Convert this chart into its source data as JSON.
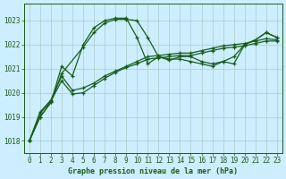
{
  "bg_color": "#cceeff",
  "grid_color": "#aacccc",
  "line_color": "#1a5c1a",
  "marker": "+",
  "title": "Graphe pression niveau de la mer (hPa)",
  "ylim": [
    1017.5,
    1023.7
  ],
  "xlim": [
    -0.5,
    23.5
  ],
  "yticks": [
    1018,
    1019,
    1020,
    1021,
    1022,
    1023
  ],
  "xticks": [
    0,
    1,
    2,
    3,
    4,
    5,
    6,
    7,
    8,
    9,
    10,
    11,
    12,
    13,
    14,
    15,
    16,
    17,
    18,
    19,
    20,
    21,
    22,
    23
  ],
  "series": [
    {
      "x": [
        0,
        1,
        2,
        3,
        4,
        5,
        6,
        7,
        8,
        9,
        10,
        11,
        12,
        13,
        14,
        15,
        16,
        17,
        18,
        19,
        20,
        21,
        22,
        23
      ],
      "y": [
        1018.0,
        1019.0,
        1019.6,
        1021.1,
        1020.7,
        1022.0,
        1022.7,
        1023.0,
        1023.1,
        1023.1,
        1022.3,
        1021.2,
        1021.5,
        1021.4,
        1021.4,
        1021.3,
        1021.2,
        1021.1,
        1021.3,
        1021.2,
        1022.0,
        1022.2,
        1022.5,
        1022.3
      ]
    },
    {
      "x": [
        0,
        1,
        2,
        3,
        5,
        6,
        7,
        8,
        9,
        10,
        11,
        12,
        13,
        14,
        15,
        16,
        17,
        18,
        19,
        20,
        21,
        22,
        23
      ],
      "y": [
        1018.0,
        1019.0,
        1019.6,
        1020.8,
        1021.9,
        1022.5,
        1022.9,
        1023.05,
        1023.05,
        1023.0,
        1022.3,
        1021.5,
        1021.35,
        1021.5,
        1021.5,
        1021.3,
        1021.2,
        1021.3,
        1021.5,
        1022.0,
        1022.2,
        1022.5,
        1022.3
      ]
    },
    {
      "x": [
        0,
        1,
        2,
        3,
        4,
        5,
        6,
        7,
        8,
        9,
        10,
        11,
        12,
        13,
        14,
        15,
        16,
        17,
        18,
        19,
        20,
        21,
        22,
        23
      ],
      "y": [
        1018.0,
        1019.2,
        1019.7,
        1020.7,
        1020.1,
        1020.2,
        1020.4,
        1020.7,
        1020.9,
        1021.1,
        1021.3,
        1021.5,
        1021.55,
        1021.6,
        1021.65,
        1021.65,
        1021.75,
        1021.85,
        1021.95,
        1022.0,
        1022.05,
        1022.15,
        1022.25,
        1022.2
      ]
    },
    {
      "x": [
        0,
        1,
        2,
        3,
        4,
        5,
        6,
        7,
        8,
        9,
        10,
        11,
        12,
        13,
        14,
        15,
        16,
        17,
        18,
        19,
        20,
        21,
        22,
        23
      ],
      "y": [
        1018.0,
        1019.15,
        1019.65,
        1020.5,
        1019.95,
        1020.0,
        1020.3,
        1020.6,
        1020.85,
        1021.05,
        1021.2,
        1021.4,
        1021.45,
        1021.5,
        1021.55,
        1021.55,
        1021.65,
        1021.75,
        1021.85,
        1021.9,
        1021.95,
        1022.05,
        1022.15,
        1022.15
      ]
    }
  ]
}
